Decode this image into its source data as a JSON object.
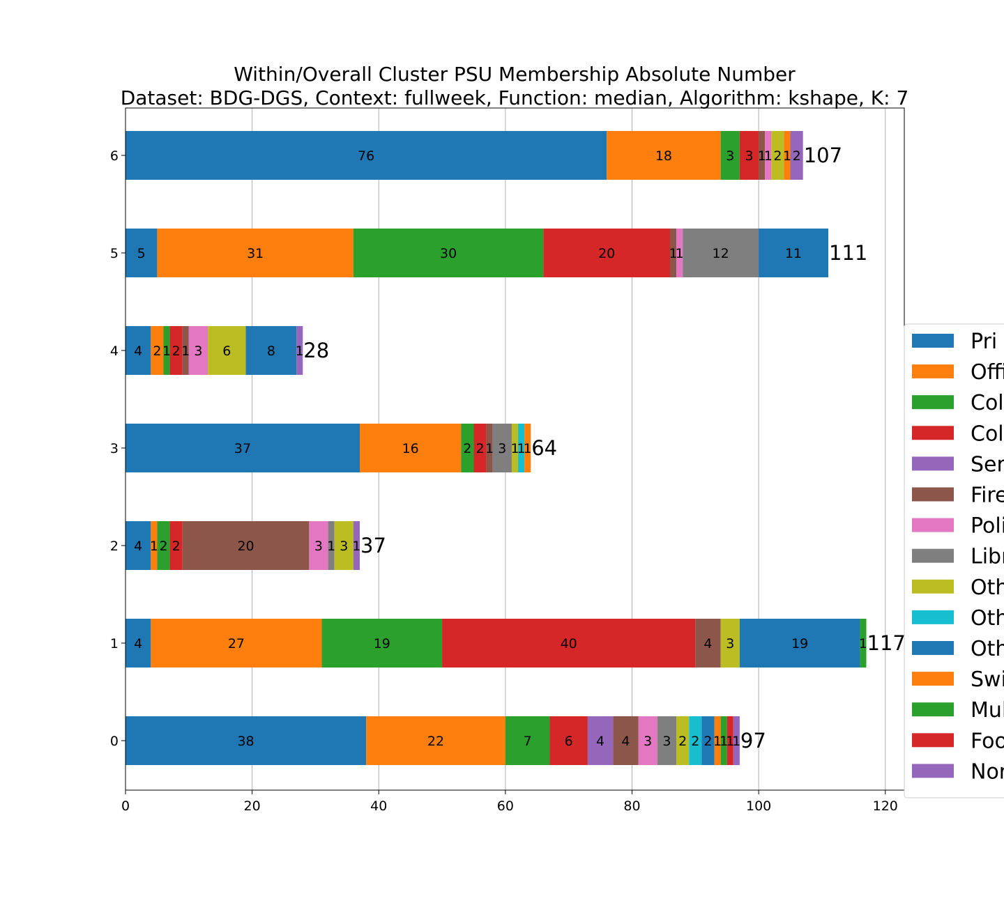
{
  "chart_data": {
    "type": "bar",
    "orientation": "horizontal",
    "stacked": true,
    "title": "Within/Overall Cluster PSU Membership Absolute Number",
    "subtitle": "Dataset: BDG-DGS, Context: fullweek, Function: median, Algorithm: kshape, K: 7",
    "xlim": [
      0,
      123
    ],
    "x_ticks": [
      0,
      20,
      40,
      60,
      80,
      100,
      120
    ],
    "grid": "x",
    "legend_position": "right (cut off)",
    "categories": [
      "0",
      "1",
      "2",
      "3",
      "4",
      "5",
      "6"
    ],
    "totals": [
      97,
      117,
      37,
      64,
      28,
      111,
      107
    ],
    "series": [
      {
        "name": "Pri",
        "color": "#1f77b4",
        "values": [
          38,
          4,
          4,
          37,
          4,
          5,
          76
        ]
      },
      {
        "name": "Offi",
        "color": "#ff7f0e",
        "values": [
          22,
          27,
          1,
          16,
          2,
          31,
          18
        ]
      },
      {
        "name": "Col",
        "color": "#2ca02c",
        "values": [
          7,
          19,
          2,
          2,
          1,
          30,
          3
        ]
      },
      {
        "name": "Col",
        "color": "#d62728",
        "values": [
          6,
          40,
          2,
          2,
          2,
          20,
          3
        ]
      },
      {
        "name": "Ser",
        "color": "#9467bd",
        "values": [
          4,
          0,
          0,
          0,
          0,
          0,
          0
        ]
      },
      {
        "name": "Fire",
        "color": "#8c564b",
        "values": [
          4,
          4,
          20,
          1,
          1,
          1,
          1
        ]
      },
      {
        "name": "Poli",
        "color": "#e377c2",
        "values": [
          3,
          0,
          3,
          0,
          3,
          1,
          1
        ]
      },
      {
        "name": "Libr",
        "color": "#7f7f7f",
        "values": [
          3,
          0,
          1,
          3,
          0,
          12,
          0
        ]
      },
      {
        "name": "Oth",
        "color": "#bcbd22",
        "values": [
          2,
          3,
          3,
          1,
          6,
          0,
          2
        ]
      },
      {
        "name": "Oth",
        "color": "#17becf",
        "values": [
          2,
          0,
          0,
          1,
          0,
          0,
          0
        ]
      },
      {
        "name": "Oth",
        "color": "#1f77b4",
        "values": [
          2,
          19,
          0,
          0,
          8,
          11,
          0
        ]
      },
      {
        "name": "Swi",
        "color": "#ff7f0e",
        "values": [
          1,
          0,
          0,
          1,
          0,
          0,
          1
        ]
      },
      {
        "name": "Mul",
        "color": "#2ca02c",
        "values": [
          1,
          1,
          0,
          0,
          0,
          0,
          0
        ]
      },
      {
        "name": "Foo",
        "color": "#d62728",
        "values": [
          1,
          0,
          0,
          0,
          0,
          0,
          0
        ]
      },
      {
        "name": "Nor",
        "color": "#9467bd",
        "values": [
          1,
          0,
          1,
          0,
          1,
          0,
          2
        ]
      }
    ]
  }
}
